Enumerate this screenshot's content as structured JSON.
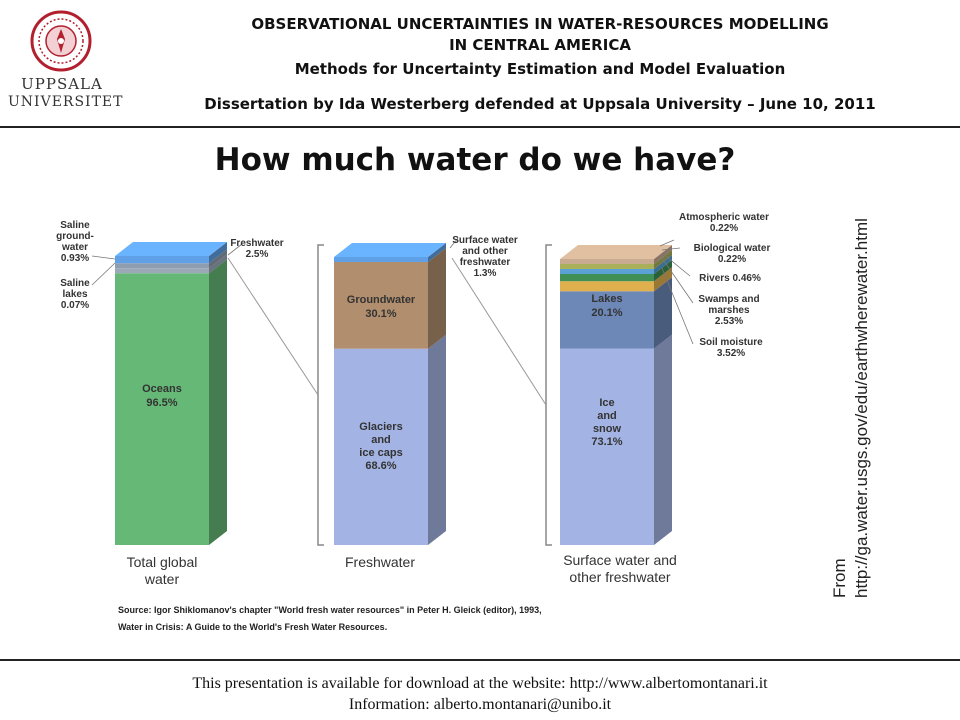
{
  "header": {
    "logo_name": "UPPSALA",
    "logo_name2": "UNIVERSITET",
    "title_line1": "OBSERVATIONAL UNCERTAINTIES IN WATER-RESOURCES MODELLING",
    "title_line2": "IN CENTRAL AMERICA",
    "subtitle": "Methods for Uncertainty Estimation and Model Evaluation",
    "dissertation": "Dissertation by Ida Westerberg defended at Uppsala University – June 10, 2011"
  },
  "slide_title": "How much water do we have?",
  "side_note": {
    "line1": "From",
    "line2": "http://ga.water.usgs.gov/edu/earthwherewater.html"
  },
  "chart_data": {
    "type": "bar",
    "stacking": "100% stacked",
    "categories": [
      "Total global water",
      "Freshwater",
      "Surface water and other freshwater"
    ],
    "bars": [
      {
        "label": "Total global water",
        "segments": [
          {
            "name": "Oceans",
            "value": 96.5,
            "label": "96.5%",
            "color": "#66b877"
          },
          {
            "name": "Saline lakes",
            "value": 0.07,
            "label": "0.07%",
            "color": "#9aa8b8"
          },
          {
            "name": "Saline ground-water",
            "value": 0.93,
            "label": "0.93%",
            "color": "#8f9db0"
          },
          {
            "name": "Freshwater",
            "value": 2.5,
            "label": "2.5%",
            "color": "#5fa0e6"
          }
        ]
      },
      {
        "label": "Freshwater",
        "segments": [
          {
            "name": "Glaciers and ice caps",
            "value": 68.6,
            "label": "68.6%",
            "color": "#a3b4e4"
          },
          {
            "name": "Groundwater",
            "value": 30.1,
            "label": "30.1%",
            "color": "#b18e6e"
          },
          {
            "name": "Surface water and other freshwater",
            "value": 1.3,
            "label": "1.3%",
            "color": "#5fa0e6"
          }
        ]
      },
      {
        "label": "Surface water and other freshwater",
        "segments": [
          {
            "name": "Ice and snow",
            "value": 73.1,
            "label": "73.1%",
            "color": "#a3b4e4"
          },
          {
            "name": "Lakes",
            "value": 20.1,
            "label": "20.1%",
            "color": "#6d87b6"
          },
          {
            "name": "Soil moisture",
            "value": 3.52,
            "label": "3.52%",
            "color": "#dfb04d"
          },
          {
            "name": "Swamps and marshes",
            "value": 2.53,
            "label": "2.53%",
            "color": "#3f8f56"
          },
          {
            "name": "Rivers",
            "value": 0.46,
            "label": "0.46%",
            "color": "#5aa1d6"
          },
          {
            "name": "Biological water",
            "value": 0.22,
            "label": "0.22%",
            "color": "#aab05a"
          },
          {
            "name": "Atmospheric water",
            "value": 0.22,
            "label": "0.22%",
            "color": "#c9ab91"
          }
        ]
      }
    ],
    "labels": {
      "oceans": [
        "Oceans",
        "96.5%"
      ],
      "saline_groundwater": [
        "Saline",
        "ground-",
        "water",
        "0.93%"
      ],
      "saline_lakes": [
        "Saline",
        "lakes",
        "0.07%"
      ],
      "freshwater": [
        "Freshwater",
        "2.5%"
      ],
      "groundwater": [
        "Groundwater",
        "30.1%"
      ],
      "glaciers": [
        "Glaciers",
        "and",
        "ice caps",
        "68.6%"
      ],
      "surface": [
        "Surface water",
        "and other",
        "freshwater",
        "1.3%"
      ],
      "lakes": [
        "Lakes",
        "20.1%"
      ],
      "ice_snow": [
        "Ice",
        "and",
        "snow",
        "73.1%"
      ],
      "atmospheric": [
        "Atmospheric water",
        "0.22%"
      ],
      "biological": [
        "Biological water",
        "0.22%"
      ],
      "rivers": [
        "Rivers  0.46%"
      ],
      "swamps": [
        "Swamps and",
        "marshes",
        "2.53%"
      ],
      "soil": [
        "Soil moisture",
        "3.52%"
      ]
    },
    "category_labels": {
      "total": [
        "Total global",
        "water"
      ],
      "fresh": [
        "Freshwater"
      ],
      "surface": [
        "Surface water and",
        "other freshwater"
      ]
    },
    "source": [
      "Source: Igor Shiklomanov's chapter \"World fresh water resources\" in Peter H. Gleick (editor), 1993,",
      "Water in Crisis: A Guide to the World's Fresh Water Resources."
    ]
  },
  "footer": {
    "line1": "This presentation is available for download at the website: http://www.albertomontanari.it",
    "line2": "Information: alberto.montanari@unibo.it"
  }
}
